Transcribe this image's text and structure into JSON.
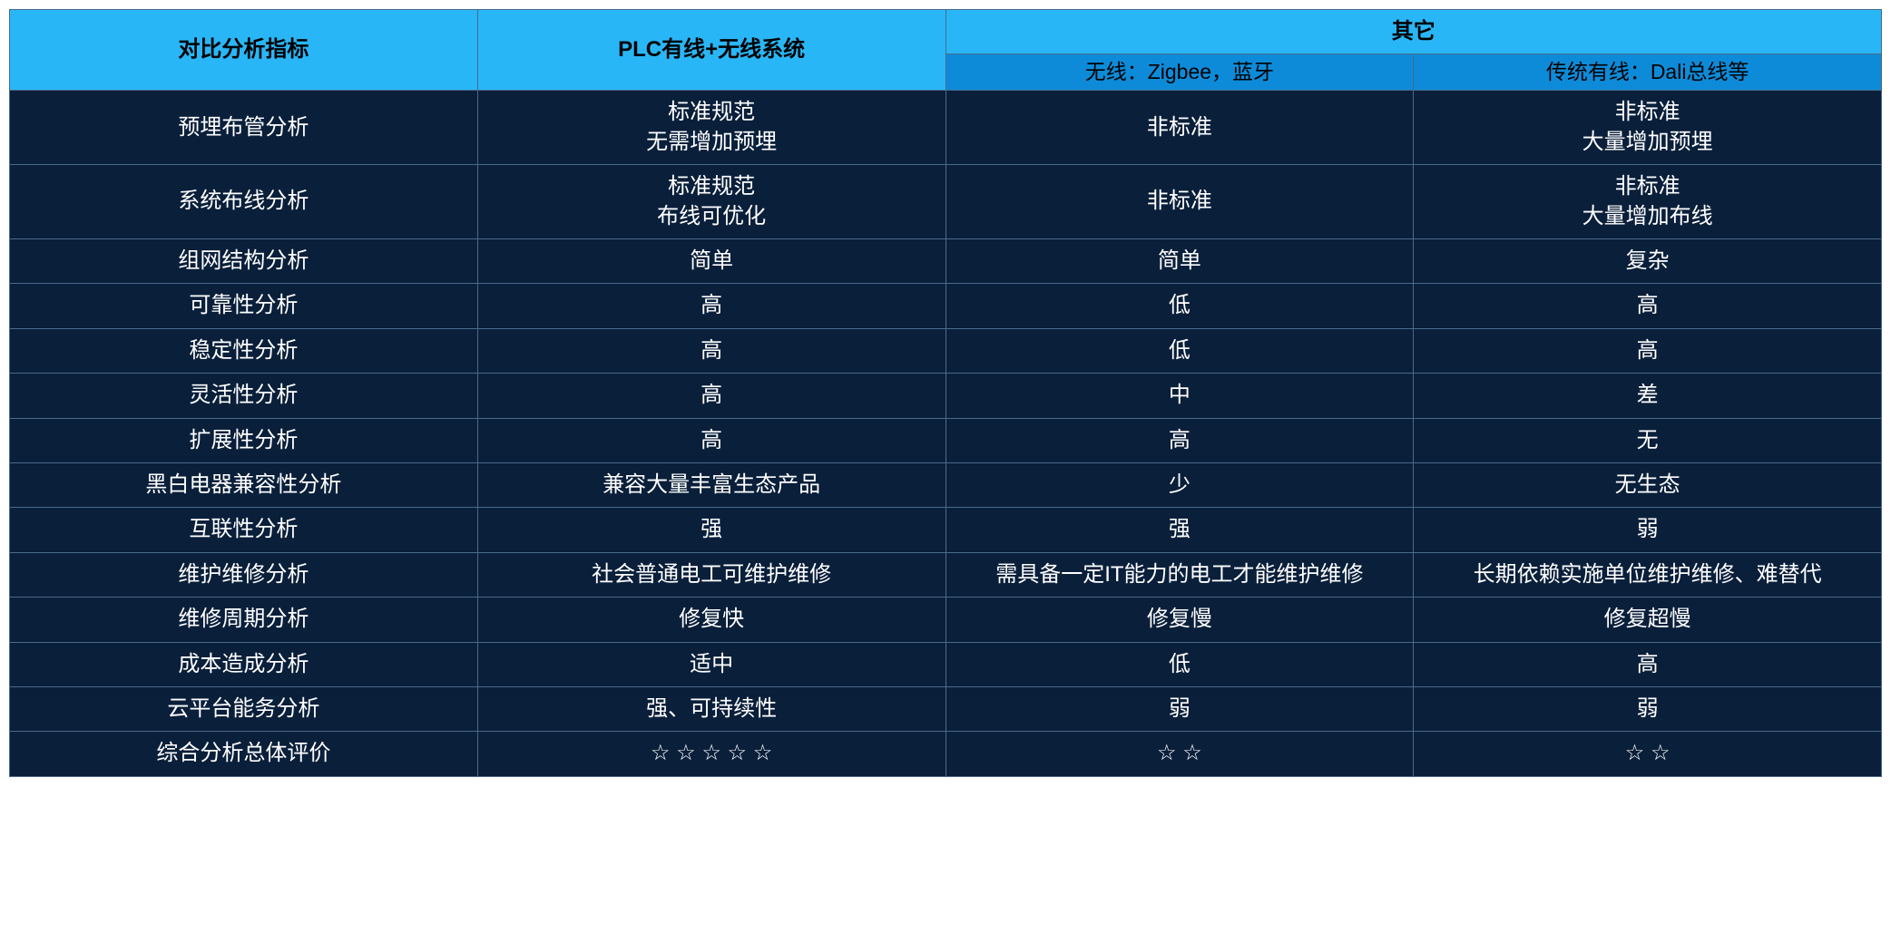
{
  "colors": {
    "header_top_bg": "#29b6f6",
    "header_sub_bg": "#0d8bd9",
    "header_text": "#000000",
    "body_bg": "#0a1f3a",
    "body_text": "#ffffff",
    "border": "#4a6a8a"
  },
  "header": {
    "metric": "对比分析指标",
    "plc": "PLC有线+无线系统",
    "other": "其它",
    "wireless": "无线：Zigbee，蓝牙",
    "wired": "传统有线：Dali总线等"
  },
  "rows": [
    {
      "metric": "预埋布管分析",
      "plc_l1": "标准规范",
      "plc_l2": "无需增加预埋",
      "wl": "非标准",
      "wd_l1": "非标准",
      "wd_l2": "大量增加预埋"
    },
    {
      "metric": "系统布线分析",
      "plc_l1": "标准规范",
      "plc_l2": "布线可优化",
      "wl": "非标准",
      "wd_l1": "非标准",
      "wd_l2": "大量增加布线"
    },
    {
      "metric": "组网结构分析",
      "plc": "简单",
      "wl": "简单",
      "wd": "复杂"
    },
    {
      "metric": "可靠性分析",
      "plc": "高",
      "wl": "低",
      "wd": "高"
    },
    {
      "metric": "稳定性分析",
      "plc": "高",
      "wl": "低",
      "wd": "高"
    },
    {
      "metric": "灵活性分析",
      "plc": "高",
      "wl": "中",
      "wd": "差"
    },
    {
      "metric": "扩展性分析",
      "plc": "高",
      "wl": "高",
      "wd": "无"
    },
    {
      "metric": "黑白电器兼容性分析",
      "plc": "兼容大量丰富生态产品",
      "wl": "少",
      "wd": "无生态"
    },
    {
      "metric": "互联性分析",
      "plc": "强",
      "wl": "强",
      "wd": "弱"
    },
    {
      "metric": "维护维修分析",
      "plc": "社会普通电工可维护维修",
      "wl": "需具备一定IT能力的电工才能维护维修",
      "wd": "长期依赖实施单位维护维修、难替代"
    },
    {
      "metric": "维修周期分析",
      "plc": "修复快",
      "wl": "修复慢",
      "wd": "修复超慢"
    },
    {
      "metric": "成本造成分析",
      "plc": "适中",
      "wl": "低",
      "wd": "高"
    },
    {
      "metric": "云平台能务分析",
      "plc": "强、可持续性",
      "wl": "弱",
      "wd": "弱"
    },
    {
      "metric": "综合分析总体评价",
      "plc": "☆ ☆ ☆ ☆ ☆",
      "wl": "☆ ☆",
      "wd": "☆ ☆"
    }
  ]
}
